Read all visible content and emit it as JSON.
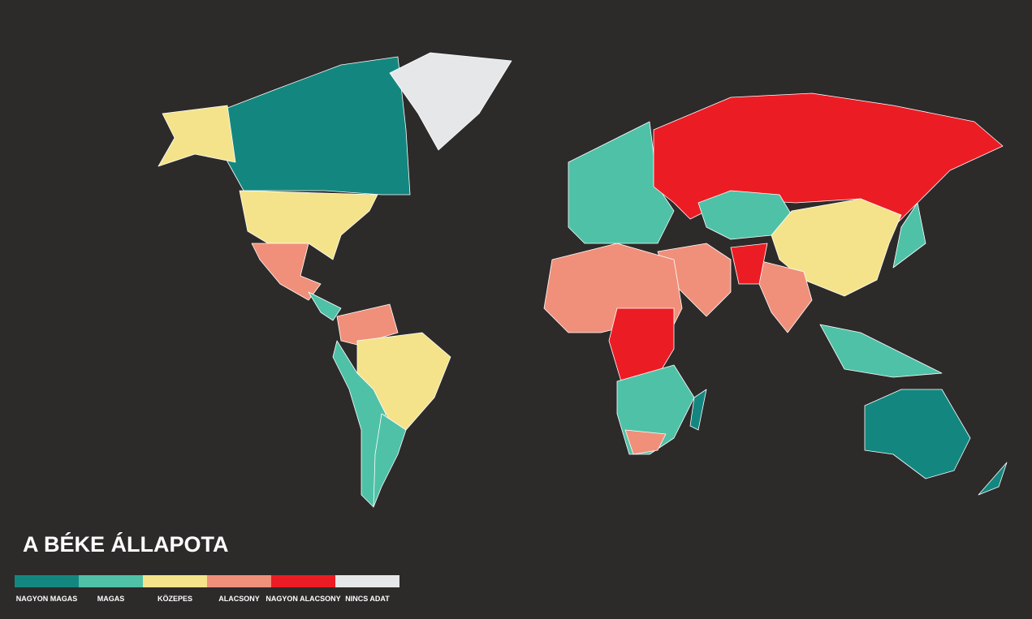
{
  "title": "A BÉKE ÁLLAPOTA",
  "legend": [
    {
      "label": "NAGYON MAGAS",
      "color": "#13877f"
    },
    {
      "label": "MAGAS",
      "color": "#4fc1a6"
    },
    {
      "label": "KÖZEPES",
      "color": "#f4e38a"
    },
    {
      "label": "ALACSONY",
      "color": "#f0907a"
    },
    {
      "label": "NAGYON ALACSONY",
      "color": "#ec1c24"
    },
    {
      "label": "NINCS ADAT",
      "color": "#e6e7e9"
    }
  ]
}
